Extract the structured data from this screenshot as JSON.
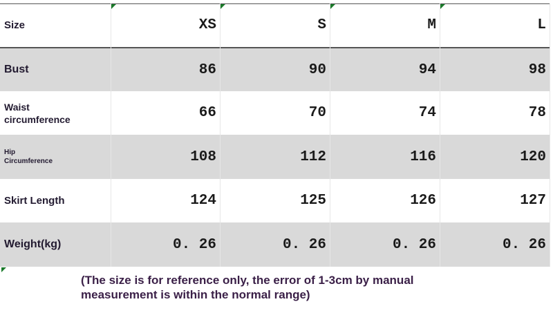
{
  "header": {
    "label": "Size",
    "sizes": [
      "XS",
      "S",
      "M",
      "L"
    ]
  },
  "rows": [
    {
      "label": "Bust",
      "values": [
        "86",
        "90",
        "94",
        "98"
      ]
    },
    {
      "label": "Waist circumference",
      "values": [
        "66",
        "70",
        "74",
        "78"
      ]
    },
    {
      "label": "Hip Circumference",
      "values": [
        "108",
        "112",
        "116",
        "120"
      ]
    },
    {
      "label": "Skirt Length",
      "values": [
        "124",
        "125",
        "126",
        "127"
      ]
    },
    {
      "label": "Weight(kg)",
      "values": [
        "0. 26",
        "0. 26",
        "0. 26",
        "0. 26"
      ]
    }
  ],
  "note": "(The size is for reference only, the error of 1-3cm by manual measurement is within the normal range)"
}
